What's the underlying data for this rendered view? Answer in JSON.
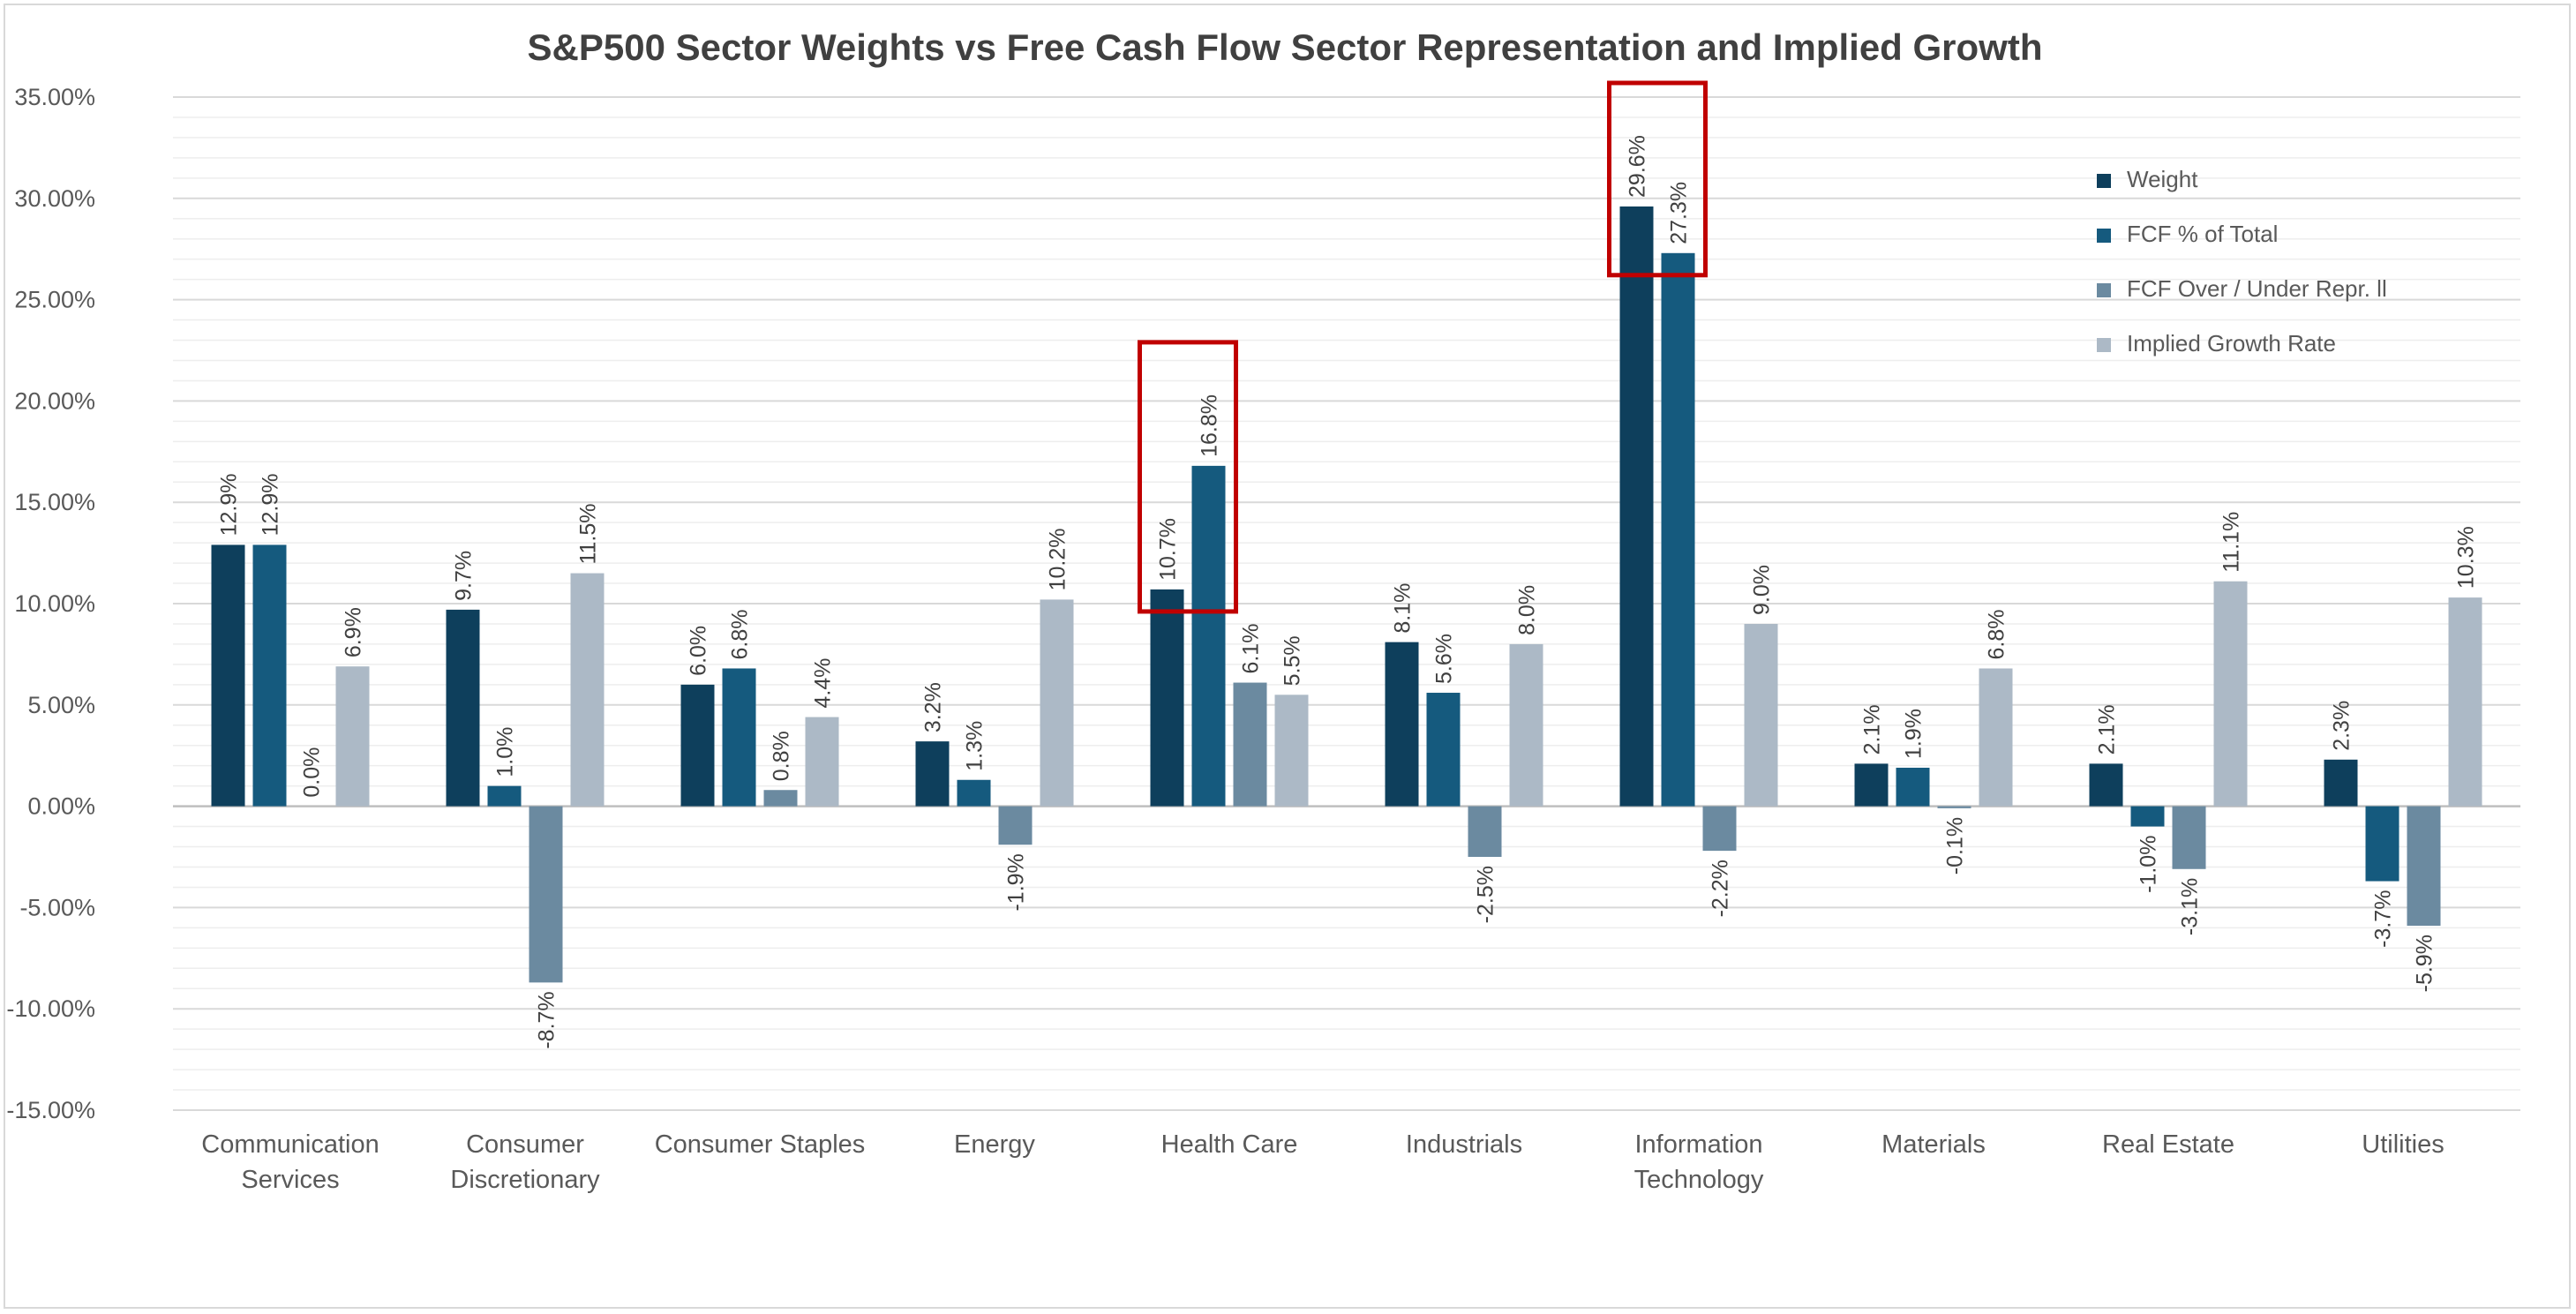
{
  "chart_data": {
    "type": "bar",
    "title": "S&P500 Sector Weights vs Free Cash Flow Sector Representation and Implied Growth",
    "xlabel": "",
    "ylabel": "",
    "ylim": [
      -15,
      35
    ],
    "yticks": [
      "35.00%",
      "30.00%",
      "25.00%",
      "20.00%",
      "15.00%",
      "10.00%",
      "5.00%",
      "0.00%",
      "-5.00%",
      "-10.00%",
      "-15.00%"
    ],
    "ytick_values": [
      35,
      30,
      25,
      20,
      15,
      10,
      5,
      0,
      -5,
      -10,
      -15
    ],
    "grid": true,
    "legend_position": "top-right",
    "categories": [
      [
        "Communication",
        "Services"
      ],
      [
        "Consumer",
        "Discretionary"
      ],
      [
        "Consumer Staples"
      ],
      [
        "Energy"
      ],
      [
        "Health Care"
      ],
      [
        "Industrials"
      ],
      [
        "Information",
        "Technology"
      ],
      [
        "Materials"
      ],
      [
        "Real Estate"
      ],
      [
        "Utilities"
      ]
    ],
    "series": [
      {
        "name": "Weight",
        "color": "#0e3f5c",
        "values": [
          12.9,
          9.7,
          6.0,
          3.2,
          10.7,
          8.1,
          29.6,
          2.1,
          2.1,
          2.3
        ],
        "labels": [
          "12.9%",
          "9.7%",
          "6.0%",
          "3.2%",
          "10.7%",
          "8.1%",
          "29.6%",
          "2.1%",
          "2.1%",
          "2.3%"
        ]
      },
      {
        "name": "FCF % of Total",
        "color": "#155a7e",
        "values": [
          12.9,
          1.0,
          6.8,
          1.3,
          16.8,
          5.6,
          27.3,
          1.9,
          -1.0,
          -3.7
        ],
        "labels": [
          "12.9%",
          "1.0%",
          "6.8%",
          "1.3%",
          "16.8%",
          "5.6%",
          "27.3%",
          "1.9%",
          "-1.0%",
          "-3.7%"
        ]
      },
      {
        "name": "FCF Over / Under Repr. ll",
        "color": "#6b8aa0",
        "values": [
          0.0,
          -8.7,
          0.8,
          -1.9,
          6.1,
          -2.5,
          -2.2,
          -0.1,
          -3.1,
          -5.9
        ],
        "labels": [
          "0.0%",
          "-8.7%",
          "0.8%",
          "-1.9%",
          "6.1%",
          "-2.5%",
          "-2.2%",
          "-0.1%",
          "-3.1%",
          "-5.9%"
        ]
      },
      {
        "name": "Implied Growth Rate",
        "color": "#acb9c6",
        "values": [
          6.9,
          11.5,
          4.4,
          10.2,
          5.5,
          8.0,
          9.0,
          6.8,
          11.1,
          10.3
        ],
        "labels": [
          "6.9%",
          "11.5%",
          "4.4%",
          "10.2%",
          "5.5%",
          "8.0%",
          "9.0%",
          "6.8%",
          "11.1%",
          "10.3%"
        ]
      }
    ],
    "highlight_boxes": [
      {
        "category_index": 4,
        "series": [
          "Weight",
          "FCF % of Total"
        ],
        "color": "#c00000"
      },
      {
        "category_index": 6,
        "series": [
          "Weight",
          "FCF % of Total"
        ],
        "color": "#c00000"
      }
    ]
  }
}
